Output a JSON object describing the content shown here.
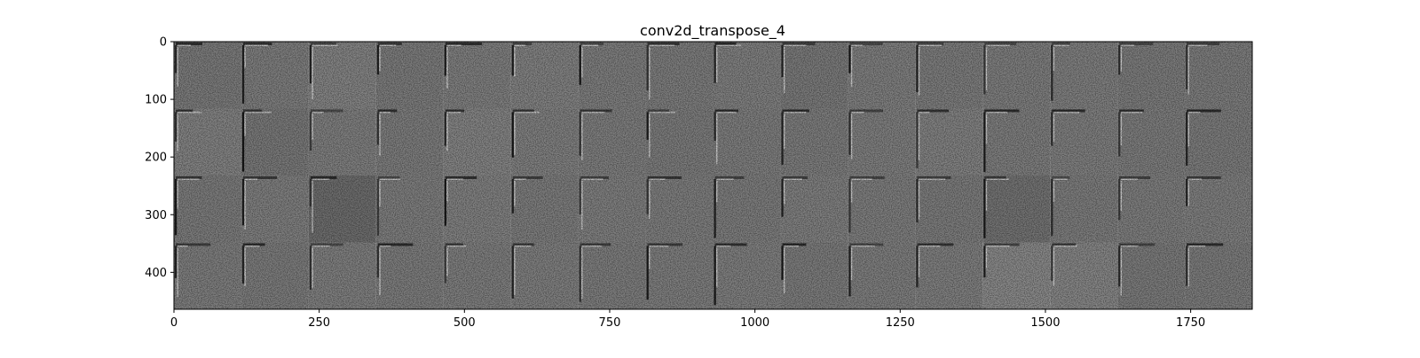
{
  "chart_data": {
    "type": "heatmap",
    "title": "conv2d_transpose_4",
    "xlabel": "",
    "ylabel": "",
    "colormap": "gray",
    "image_shape": [
      464,
      1856
    ],
    "xlim": [
      0,
      1856
    ],
    "ylim": [
      464,
      0
    ],
    "y_inverted": true,
    "grid": false,
    "xticks": [
      0,
      250,
      500,
      750,
      1000,
      1250,
      1500,
      1750
    ],
    "yticks": [
      0,
      100,
      200,
      300,
      400
    ],
    "tile_grid": {
      "rows": 4,
      "cols": 16,
      "tile_size": 116
    },
    "background_gray": "#808080",
    "tile_gray_variations": [
      [
        "#7c7c7c",
        "#7f7f7f",
        "#858585",
        "#7d7d7d",
        "#808080",
        "#838383",
        "#7f7f7f",
        "#7e7e7e",
        "#818181",
        "#7b7b7b",
        "#808080",
        "#7e7e7e",
        "#7f7f7f",
        "#808080",
        "#7d7d7d",
        "#7e7e7e"
      ],
      [
        "#848484",
        "#7a7a7a",
        "#808080",
        "#7e7e7e",
        "#858585",
        "#818181",
        "#7f7f7f",
        "#7d7d7d",
        "#7f7f7f",
        "#7e7e7e",
        "#808080",
        "#838383",
        "#7f7f7f",
        "#808080",
        "#7e7e7e",
        "#7d7d7d"
      ],
      [
        "#7d7d7d",
        "#808080",
        "#6e6e6e",
        "#7f7f7f",
        "#828282",
        "#7e7e7e",
        "#808080",
        "#7f7f7f",
        "#7e7e7e",
        "#818181",
        "#7f7f7f",
        "#7d7d7d",
        "#747474",
        "#7e7e7e",
        "#7f7f7f",
        "#808080"
      ],
      [
        "#7f7f7f",
        "#7d7d7d",
        "#808080",
        "#7e7e7e",
        "#7f7f7f",
        "#808080",
        "#7e7e7e",
        "#7f7f7f",
        "#808080",
        "#7d7d7d",
        "#7f7f7f",
        "#808080",
        "#8a8a8a",
        "#878787",
        "#7c7c7c",
        "#7d7d7d"
      ]
    ]
  }
}
